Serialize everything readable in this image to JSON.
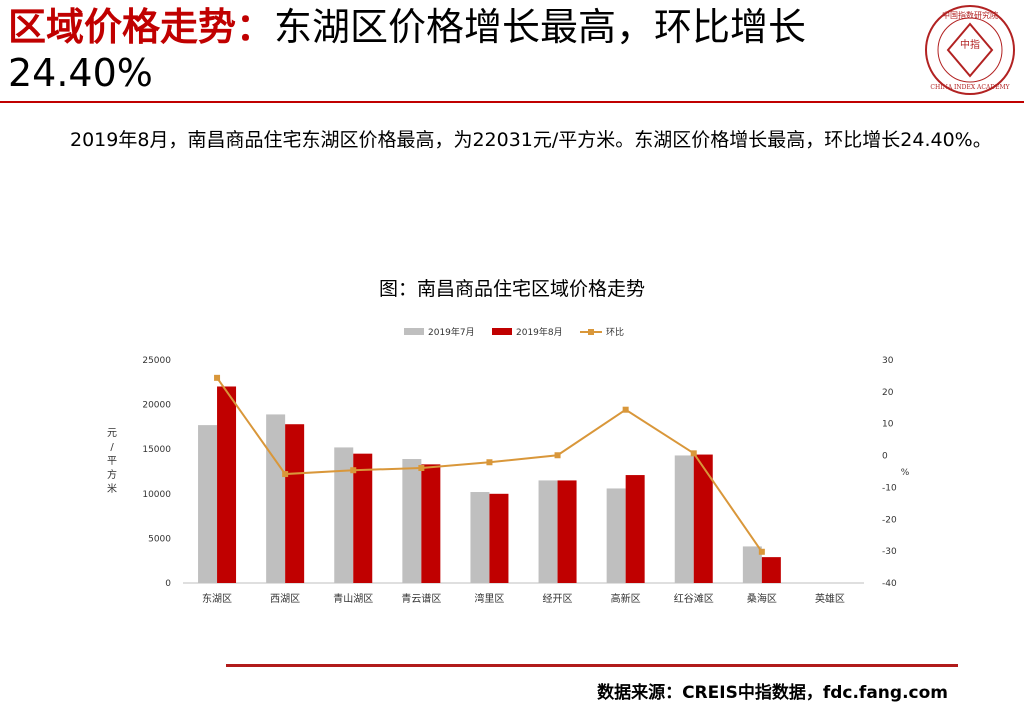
{
  "slide": {
    "title_red": "区域价格走势：",
    "title_rest_1": "东湖区价格增长最高，环比增长",
    "title_rest_2": "24.40%",
    "paragraph": "2019年8月，南昌商品住宅东湖区价格最高，为22031元/平方米。东湖区价格增长最高，环比增长24.40%。",
    "chart_title": "图：南昌商品住宅区域价格走势",
    "source": "数据来源：CREIS中指数据，fdc.fang.com",
    "logo": {
      "icon": "china-index-academy-seal",
      "text_en": "CHINA INDEX ACADEMY",
      "text_cn_top": "中国指数研究院",
      "text_center": "中指"
    },
    "colors": {
      "accent": "#c00000",
      "jul": "#bfbfbf",
      "aug": "#c00000",
      "mom": "#d9973a"
    }
  },
  "chart_data": {
    "type": "bar",
    "categories": [
      "东湖区",
      "西湖区",
      "青山湖区",
      "青云谱区",
      "湾里区",
      "经开区",
      "高新区",
      "红谷滩区",
      "桑海区",
      "英雄区"
    ],
    "series": [
      {
        "name": "2019年7月",
        "type": "bar",
        "axis": "left",
        "values": [
          17700,
          18900,
          15200,
          13900,
          10200,
          11500,
          10600,
          14300,
          4100,
          null
        ]
      },
      {
        "name": "2019年8月",
        "type": "bar",
        "axis": "left",
        "values": [
          22031,
          17800,
          14500,
          13300,
          10000,
          11500,
          12100,
          14400,
          2900,
          null
        ]
      },
      {
        "name": "环比",
        "type": "line",
        "axis": "right",
        "values": [
          24.4,
          -5.8,
          -4.6,
          -3.9,
          -2.1,
          0.1,
          14.4,
          0.7,
          -30.2,
          null
        ]
      }
    ],
    "ylabel_left": "元/平方米",
    "ylabel_right": "%",
    "ylim_left": [
      0,
      25000
    ],
    "ylim_right": [
      -40,
      30
    ],
    "yticks_left": [
      "0",
      "5000",
      "10000",
      "15000",
      "20000",
      "25000"
    ],
    "yticks_right": [
      "-40",
      "-30",
      "-20",
      "-10",
      "0",
      "10",
      "20",
      "30"
    ],
    "legend_position": "top-center",
    "grid": false
  }
}
